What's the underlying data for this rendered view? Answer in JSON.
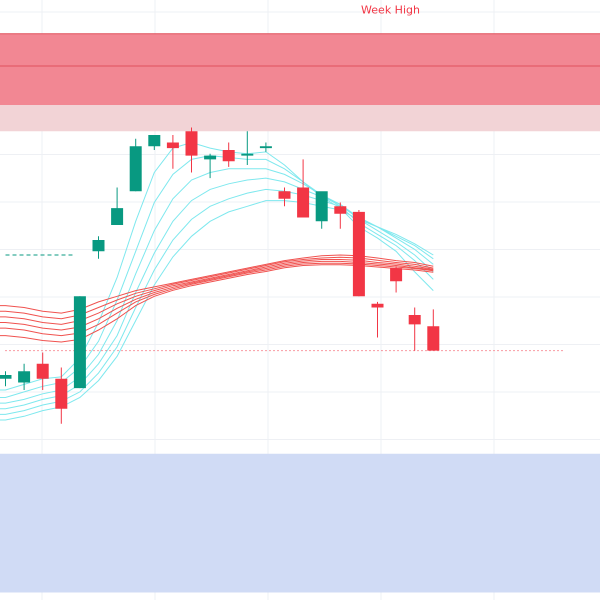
{
  "chart_data": {
    "type": "candlestick",
    "ylim": [
      -8,
      8
    ],
    "grid": true,
    "colors": {
      "up": "#089981",
      "down": "#f23645",
      "fast_ma": "#7ee8ee",
      "slow_ma": "#f0524f",
      "resistance_zone": "#f28793",
      "resistance_zone_light": "#f2d3d6",
      "support_zone": "#d0dbf5",
      "grid": "#eef0f4",
      "annotation": "#f23645",
      "dashed_level": "#089981"
    },
    "zones": [
      {
        "kind": "resistance",
        "from": 5.2,
        "to": 7.1
      },
      {
        "kind": "resistance-light",
        "from": 4.5,
        "to": 5.2
      },
      {
        "kind": "support",
        "from": -7.8,
        "to": -4.1
      }
    ],
    "zone_lines": [
      6.24,
      7.1
    ],
    "levels": [
      {
        "value": 1.2,
        "style": "dashed",
        "x_from": 0,
        "x_to": 3.6
      },
      {
        "value": -1.35,
        "style": "dotted",
        "x_from": 0,
        "x_to": 30
      }
    ],
    "annotation": {
      "text": "Week High",
      "x": 20.7,
      "y": 7.75
    },
    "candles": [
      {
        "x": 0,
        "o": -2.1,
        "h": -1.9,
        "l": -2.3,
        "c": -2.0
      },
      {
        "x": 1,
        "o": -2.2,
        "h": -1.7,
        "l": -2.4,
        "c": -1.9
      },
      {
        "x": 2,
        "o": -1.7,
        "h": -1.4,
        "l": -2.4,
        "c": -2.1
      },
      {
        "x": 3,
        "o": -2.1,
        "h": -1.8,
        "l": -3.3,
        "c": -2.9
      },
      {
        "x": 4,
        "o": -2.35,
        "h": 0.1,
        "l": -2.35,
        "c": 0.1
      },
      {
        "x": 5,
        "o": 1.3,
        "h": 1.7,
        "l": 1.1,
        "c": 1.6
      },
      {
        "x": 6,
        "o": 2.0,
        "h": 3.0,
        "l": 2.0,
        "c": 2.45
      },
      {
        "x": 7,
        "o": 2.9,
        "h": 4.3,
        "l": 2.9,
        "c": 4.1
      },
      {
        "x": 8,
        "o": 4.1,
        "h": 4.4,
        "l": 4.0,
        "c": 4.4
      },
      {
        "x": 9,
        "o": 4.2,
        "h": 4.4,
        "l": 3.5,
        "c": 4.05
      },
      {
        "x": 10,
        "o": 4.5,
        "h": 4.6,
        "l": 3.4,
        "c": 3.85
      },
      {
        "x": 11,
        "o": 3.75,
        "h": 3.9,
        "l": 3.25,
        "c": 3.85
      },
      {
        "x": 12,
        "o": 4.0,
        "h": 4.2,
        "l": 3.55,
        "c": 3.7
      },
      {
        "x": 13,
        "o": 3.85,
        "h": 4.5,
        "l": 3.6,
        "c": 3.9
      },
      {
        "x": 14,
        "o": 4.05,
        "h": 4.2,
        "l": 3.95,
        "c": 4.1
      },
      {
        "x": 15,
        "o": 2.9,
        "h": 3.0,
        "l": 2.5,
        "c": 2.7
      },
      {
        "x": 16,
        "o": 3.0,
        "h": 3.75,
        "l": 2.3,
        "c": 2.2
      },
      {
        "x": 17,
        "o": 2.1,
        "h": 2.85,
        "l": 1.9,
        "c": 2.9
      },
      {
        "x": 18,
        "o": 2.5,
        "h": 2.6,
        "l": 1.9,
        "c": 2.3
      },
      {
        "x": 19,
        "o": 2.35,
        "h": 2.4,
        "l": 0.1,
        "c": 0.1
      },
      {
        "x": 20,
        "o": -0.1,
        "h": -0.05,
        "l": -1.0,
        "c": -0.2
      },
      {
        "x": 21,
        "o": 0.85,
        "h": 0.9,
        "l": 0.2,
        "c": 0.5
      },
      {
        "x": 22,
        "o": -0.4,
        "h": -0.2,
        "l": -1.35,
        "c": -0.65
      },
      {
        "x": 23,
        "o": -0.7,
        "h": -0.25,
        "l": -1.35,
        "c": -1.35
      }
    ],
    "ma_series": [
      {
        "group": "fast",
        "values": [
          -2.4,
          -2.25,
          -2.1,
          -2.05,
          -1.55,
          -0.6,
          0.6,
          2.1,
          3.4,
          4.05,
          4.2,
          4.05,
          3.95,
          3.9,
          3.95,
          3.6,
          3.15,
          2.75,
          2.45,
          1.95,
          1.65,
          1.3,
          0.75,
          0.25
        ]
      },
      {
        "group": "fast",
        "values": [
          -2.6,
          -2.45,
          -2.3,
          -2.2,
          -1.8,
          -1.1,
          0.0,
          1.3,
          2.6,
          3.35,
          3.75,
          3.85,
          3.8,
          3.75,
          3.75,
          3.5,
          3.15,
          2.8,
          2.5,
          2.05,
          1.75,
          1.45,
          1.05,
          0.55
        ]
      },
      {
        "group": "fast",
        "values": [
          -2.75,
          -2.65,
          -2.5,
          -2.4,
          -2.05,
          -1.45,
          -0.55,
          0.7,
          1.85,
          2.7,
          3.2,
          3.4,
          3.5,
          3.5,
          3.5,
          3.35,
          3.1,
          2.8,
          2.55,
          2.15,
          1.85,
          1.55,
          1.2,
          0.75
        ]
      },
      {
        "group": "fast",
        "values": [
          -2.9,
          -2.8,
          -2.65,
          -2.55,
          -2.25,
          -1.7,
          -0.95,
          0.2,
          1.25,
          2.1,
          2.65,
          2.95,
          3.1,
          3.2,
          3.25,
          3.15,
          2.95,
          2.75,
          2.55,
          2.2,
          1.95,
          1.65,
          1.35,
          0.95
        ]
      },
      {
        "group": "fast",
        "values": [
          -3.05,
          -2.95,
          -2.8,
          -2.7,
          -2.45,
          -1.95,
          -1.25,
          -0.2,
          0.8,
          1.6,
          2.15,
          2.5,
          2.7,
          2.85,
          2.95,
          2.9,
          2.8,
          2.65,
          2.5,
          2.2,
          1.95,
          1.7,
          1.45,
          1.1
        ]
      },
      {
        "group": "fast",
        "values": [
          -3.2,
          -3.1,
          -2.95,
          -2.85,
          -2.6,
          -2.15,
          -1.5,
          -0.55,
          0.4,
          1.15,
          1.7,
          2.1,
          2.35,
          2.5,
          2.65,
          2.65,
          2.6,
          2.5,
          2.4,
          2.15,
          1.95,
          1.75,
          1.5,
          1.2
        ]
      },
      {
        "group": "slow",
        "values": [
          -0.15,
          -0.2,
          -0.3,
          -0.35,
          -0.25,
          -0.05,
          0.1,
          0.25,
          0.35,
          0.45,
          0.55,
          0.65,
          0.75,
          0.85,
          0.95,
          1.05,
          1.12,
          1.18,
          1.2,
          1.18,
          1.12,
          1.05,
          1.0,
          0.9
        ]
      },
      {
        "group": "slow",
        "values": [
          -0.3,
          -0.35,
          -0.45,
          -0.5,
          -0.4,
          -0.2,
          0.0,
          0.18,
          0.3,
          0.42,
          0.52,
          0.62,
          0.72,
          0.82,
          0.92,
          1.02,
          1.08,
          1.12,
          1.14,
          1.12,
          1.06,
          1.0,
          0.95,
          0.85
        ]
      },
      {
        "group": "slow",
        "values": [
          -0.45,
          -0.5,
          -0.6,
          -0.65,
          -0.55,
          -0.35,
          -0.1,
          0.1,
          0.25,
          0.38,
          0.48,
          0.58,
          0.68,
          0.78,
          0.88,
          0.98,
          1.04,
          1.08,
          1.08,
          1.06,
          1.0,
          0.96,
          0.9,
          0.82
        ]
      },
      {
        "group": "slow",
        "values": [
          -0.6,
          -0.65,
          -0.75,
          -0.8,
          -0.72,
          -0.5,
          -0.22,
          0.02,
          0.2,
          0.34,
          0.45,
          0.55,
          0.65,
          0.75,
          0.84,
          0.94,
          1.0,
          1.03,
          1.03,
          1.0,
          0.96,
          0.92,
          0.86,
          0.8
        ]
      },
      {
        "group": "slow",
        "values": [
          -0.75,
          -0.8,
          -0.9,
          -0.95,
          -0.88,
          -0.65,
          -0.35,
          -0.05,
          0.15,
          0.3,
          0.42,
          0.52,
          0.62,
          0.72,
          0.8,
          0.9,
          0.96,
          0.98,
          0.98,
          0.96,
          0.92,
          0.88,
          0.84,
          0.78
        ]
      },
      {
        "group": "slow",
        "values": [
          -0.95,
          -1.0,
          -1.08,
          -1.12,
          -1.05,
          -0.8,
          -0.5,
          -0.15,
          0.1,
          0.26,
          0.38,
          0.48,
          0.58,
          0.68,
          0.76,
          0.86,
          0.92,
          0.94,
          0.94,
          0.92,
          0.88,
          0.84,
          0.8,
          0.74
        ]
      }
    ]
  }
}
